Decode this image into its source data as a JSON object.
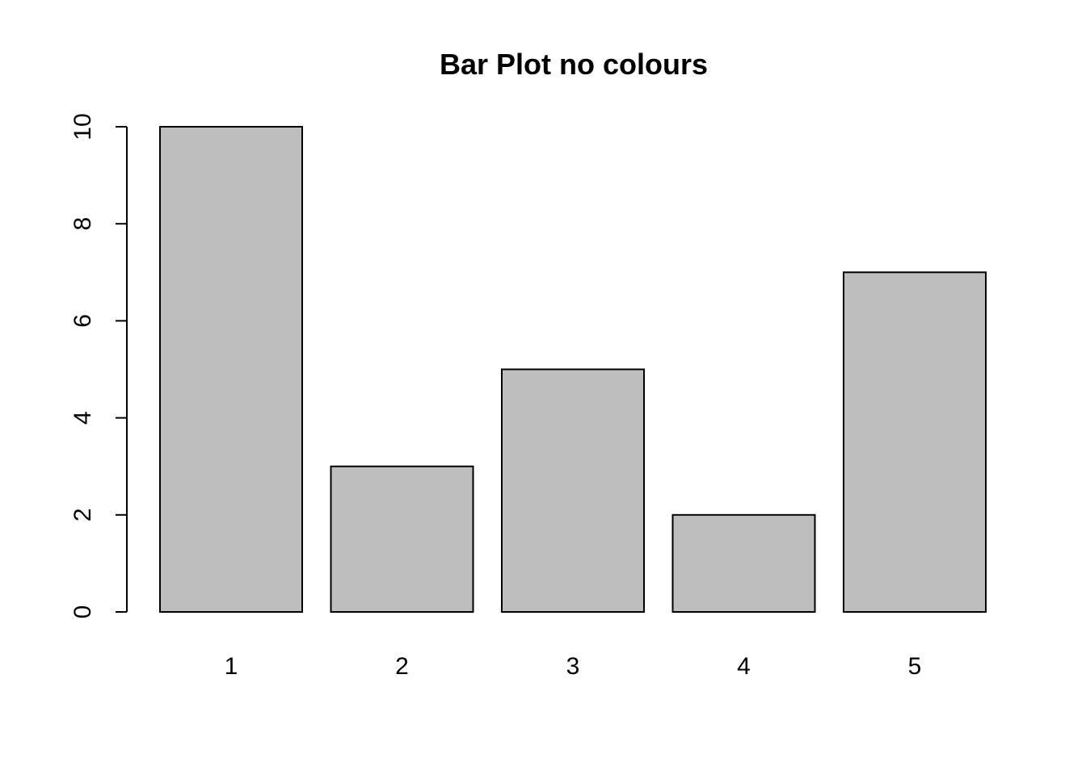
{
  "chart_data": {
    "type": "bar",
    "title": "Bar Plot no colours",
    "xlabel": "",
    "ylabel": "",
    "categories": [
      "1",
      "2",
      "3",
      "4",
      "5"
    ],
    "values": [
      10,
      3,
      5,
      2,
      7
    ],
    "ylim": [
      0,
      10
    ],
    "yticks": [
      0,
      2,
      4,
      6,
      8,
      10
    ],
    "grid": false,
    "legend": "none",
    "colors": {
      "bar_fill": "#bebebe",
      "bar_stroke": "#000000",
      "axis": "#000000",
      "background": "#ffffff"
    }
  }
}
